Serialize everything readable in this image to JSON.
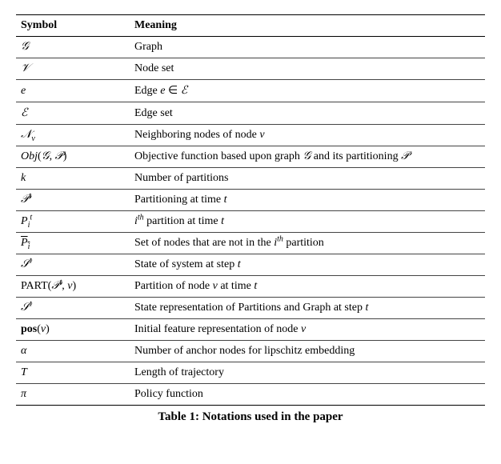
{
  "caption": "Table 1: Notations used in the paper",
  "headers": {
    "symbol": "Symbol",
    "meaning": "Meaning"
  },
  "rows": {
    "r0": {
      "symbol": "𝒢",
      "meaning": "Graph"
    },
    "r1": {
      "symbol": "𝒱",
      "meaning": "Node set"
    },
    "r2": {
      "symbol_html": "<span class=\"it\">e</span>",
      "meaning_html": "Edge <span class=\"it\">e</span> ∈ <span class=\"cal\">ℰ</span>"
    },
    "r3": {
      "symbol": "ℰ",
      "meaning": "Edge set"
    },
    "r4": {
      "symbol_html": "<span class=\"cal\">𝒩</span><sub><span class=\"it\">v</span></sub>",
      "meaning_html": "Neighboring nodes of node <span class=\"it\">v</span>"
    },
    "r5": {
      "symbol_html": "<span class=\"it\">Obj</span>(<span class=\"cal\">𝒢</span>, <span class=\"cal\">𝒫</span>)",
      "meaning_html": "Objective function based upon graph <span class=\"cal\">𝒢</span> and its partitioning <span class=\"cal\">𝒫</span>"
    },
    "r6": {
      "symbol_html": "<span class=\"it\">k</span>",
      "meaning": "Number of partitions"
    },
    "r7": {
      "symbol_html": "<span class=\"cal\">𝒫</span><sup><span class=\"it\">t</span></sup>",
      "meaning_html": "Partitioning at time <span class=\"it\">t</span>"
    },
    "r8": {
      "symbol_html": "<span class=\"it\">P</span><sub><span class=\"it\">i</span></sub><sup><span class=\"it\">t</span></sup>",
      "meaning_html": "<span class=\"it\">i<sup>th</sup></span> partition at time <span class=\"it\">t</span>"
    },
    "r9": {
      "symbol_html": "<span class=\"overline\"><span class=\"it\">P<sub>i</sub></span></span>",
      "meaning_html": "Set of nodes that are not in the <span class=\"it\">i<sup>th</sup></span> partition"
    },
    "r10": {
      "symbol_html": "<span class=\"cal\">𝒮</span><sup><span class=\"it\">t</span></sup>",
      "meaning_html": "State of system at step <span class=\"it\">t</span>"
    },
    "r11": {
      "symbol_html": "PART(<span class=\"cal\">𝒫</span><sup><span class=\"it\">t</span></sup>, <span class=\"it\">v</span>)",
      "meaning_html": "Partition of node <span class=\"it\">v</span> at time <span class=\"it\">t</span>"
    },
    "r12": {
      "symbol_html": "<span class=\"cal\">𝒮</span><sup><span class=\"it\">t</span></sup>",
      "meaning_html": "State representation of Partitions and Graph at step <span class=\"it\">t</span>"
    },
    "r13": {
      "symbol_html": "<b>pos</b>(<span class=\"it\">v</span>)",
      "meaning_html": "Initial feature representation of node <span class=\"it\">v</span>"
    },
    "r14": {
      "symbol_html": "<span class=\"it\">α</span>",
      "meaning": "Number of anchor nodes for lipschitz embedding"
    },
    "r15": {
      "symbol_html": "<span class=\"it\">T</span>",
      "meaning": "Length of trajectory"
    },
    "r16": {
      "symbol_html": "<span class=\"it\">π</span>",
      "meaning": "Policy function"
    }
  }
}
